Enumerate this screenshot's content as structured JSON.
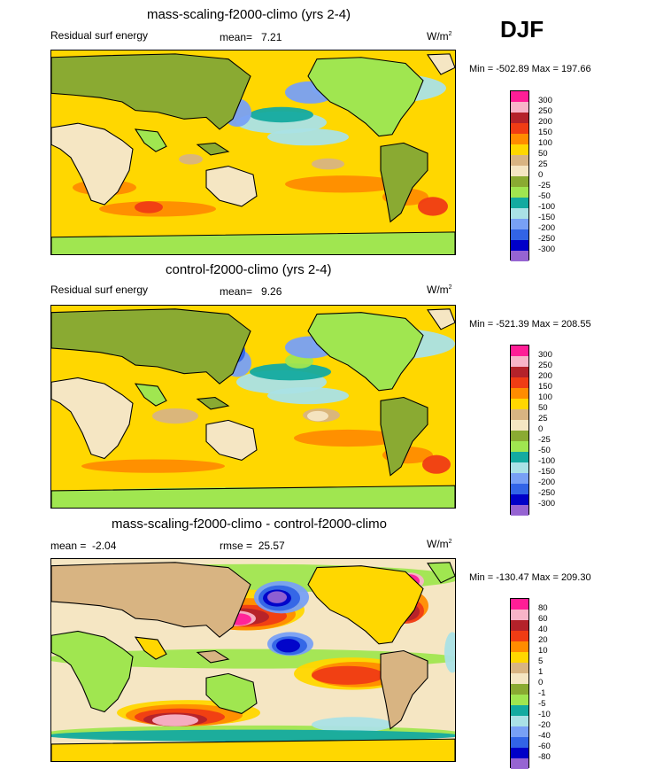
{
  "season": "DJF",
  "units_base": "W/m",
  "units_exp": "2",
  "chart_data": [
    {
      "type": "heatmap",
      "title": "mass-scaling-f2000-climo (yrs 2-4)",
      "left_label": "Residual surf energy",
      "mean_label": "mean=",
      "mean_value": "7.21",
      "minmax_text": "Min = -502.89 Max = 197.66",
      "levels": [
        "300",
        "250",
        "200",
        "150",
        "100",
        "50",
        "25",
        "0",
        "-25",
        "-50",
        "-100",
        "-150",
        "-200",
        "-250",
        "-300"
      ],
      "colors": [
        "#ff1e96",
        "#f8b4c8",
        "#b4222a",
        "#f03c14",
        "#ff8c00",
        "#ffd700",
        "#d8b482",
        "#f5e6c3",
        "#8aaa32",
        "#a0e650",
        "#14aaa0",
        "#aae1e6",
        "#78a0f5",
        "#3264e6",
        "#0000c8",
        "#9664d2"
      ]
    },
    {
      "type": "heatmap",
      "title": "control-f2000-climo (yrs 2-4)",
      "left_label": "Residual surf energy",
      "mean_label": "mean=",
      "mean_value": "9.26",
      "minmax_text": "Min = -521.39 Max = 208.55",
      "levels": [
        "300",
        "250",
        "200",
        "150",
        "100",
        "50",
        "25",
        "0",
        "-25",
        "-50",
        "-100",
        "-150",
        "-200",
        "-250",
        "-300"
      ],
      "colors": [
        "#ff1e96",
        "#f8b4c8",
        "#b4222a",
        "#f03c14",
        "#ff8c00",
        "#ffd700",
        "#d8b482",
        "#f5e6c3",
        "#8aaa32",
        "#a0e650",
        "#14aaa0",
        "#aae1e6",
        "#78a0f5",
        "#3264e6",
        "#0000c8",
        "#9664d2"
      ]
    },
    {
      "type": "heatmap",
      "title": "mass-scaling-f2000-climo - control-f2000-climo",
      "mean_label": "mean =",
      "mean_value": "-2.04",
      "rmse_label": "rmse =",
      "rmse_value": "25.57",
      "minmax_text": "Min = -130.47 Max = 209.30",
      "levels": [
        "80",
        "60",
        "40",
        "20",
        "10",
        "5",
        "1",
        "0",
        "-1",
        "-5",
        "-10",
        "-20",
        "-40",
        "-60",
        "-80"
      ],
      "colors": [
        "#ff1e96",
        "#f8b4c8",
        "#b4222a",
        "#f03c14",
        "#ff8c00",
        "#ffd700",
        "#d8b482",
        "#f5e6c3",
        "#8aaa32",
        "#a0e650",
        "#14aaa0",
        "#aae1e6",
        "#78a0f5",
        "#3264e6",
        "#0000c8",
        "#9664d2"
      ]
    }
  ]
}
